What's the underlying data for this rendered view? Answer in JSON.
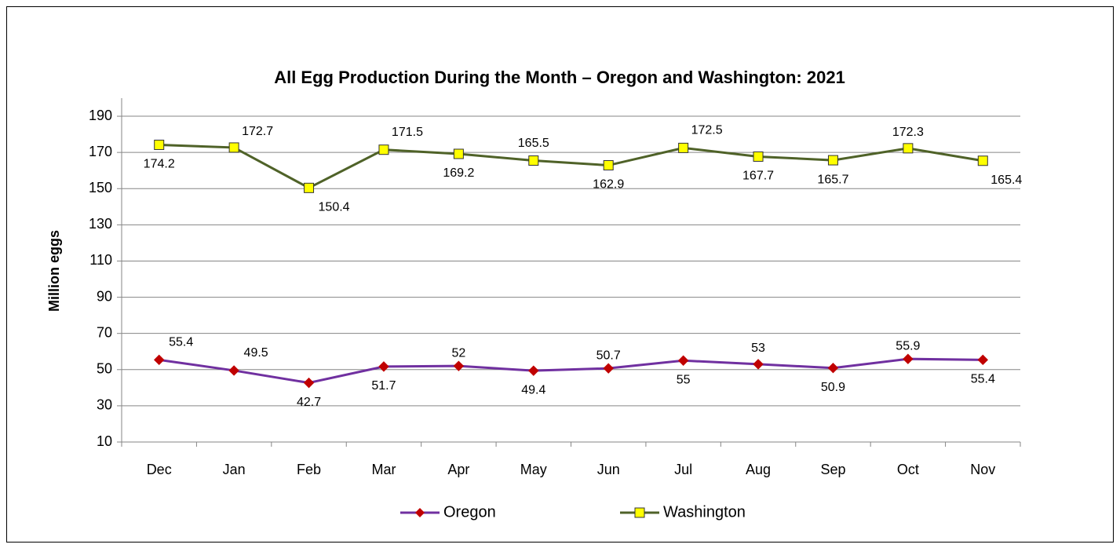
{
  "chart_data": {
    "type": "line",
    "title": "All Egg Production During the Month –  Oregon and Washington: 2021",
    "y_label": "Million eggs",
    "categories": [
      "Dec",
      "Jan",
      "Feb",
      "Mar",
      "Apr",
      "May",
      "Jun",
      "Jul",
      "Aug",
      "Sep",
      "Oct",
      "Nov"
    ],
    "series": [
      {
        "name": "Oregon",
        "color": "#7030a0",
        "marker_color": "#c00000",
        "marker": "diamond",
        "values": [
          55.4,
          49.5,
          42.7,
          51.7,
          52,
          49.4,
          50.7,
          55,
          53,
          50.9,
          55.9,
          55.4
        ]
      },
      {
        "name": "Washington",
        "color": "#4f6228",
        "marker_color": "#ffff00",
        "marker": "square",
        "values": [
          174.2,
          172.7,
          150.4,
          171.5,
          169.2,
          165.5,
          162.9,
          172.5,
          167.7,
          165.7,
          172.3,
          165.4
        ]
      }
    ],
    "ylim": [
      10,
      200
    ],
    "yticks": [
      10,
      30,
      50,
      70,
      90,
      110,
      130,
      150,
      170,
      190
    ],
    "grid": true,
    "legend": "bottom"
  }
}
